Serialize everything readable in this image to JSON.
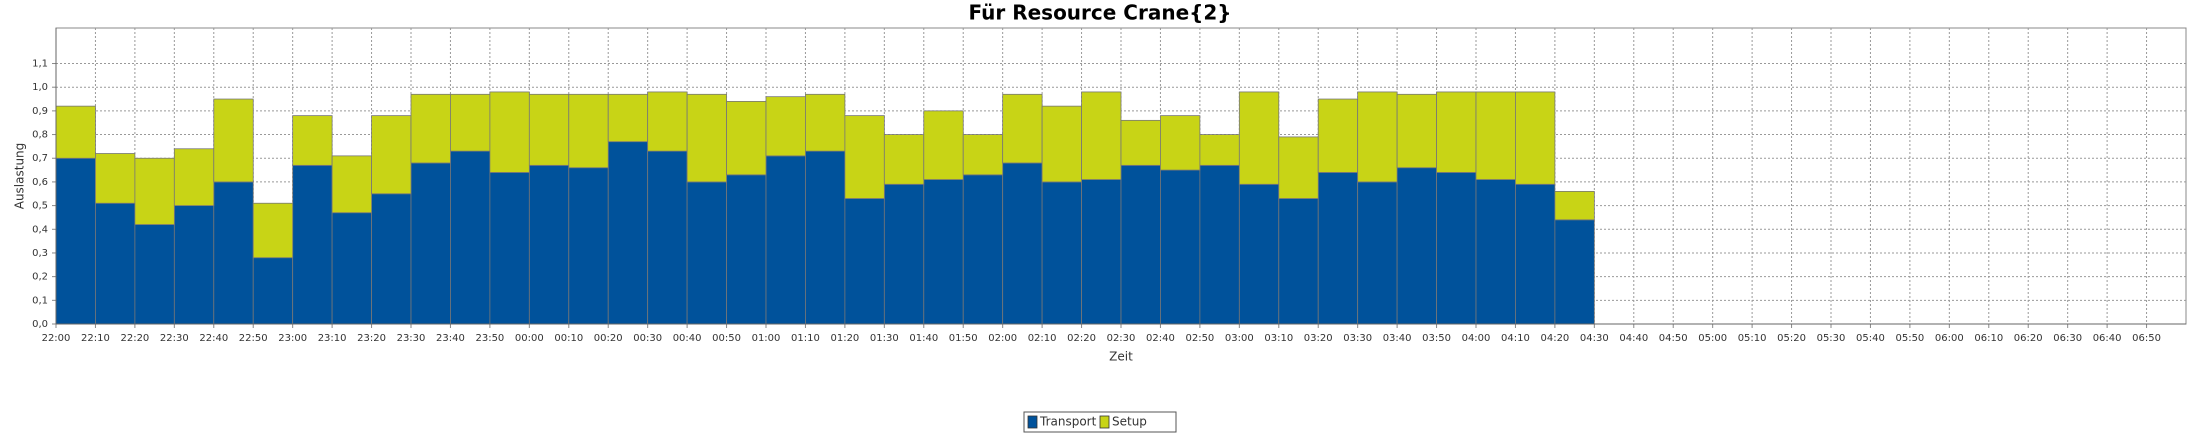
{
  "chart_data": {
    "type": "bar",
    "stacked": true,
    "title": "Für Resource Crane{2}",
    "x_label": "Zeit",
    "y_label": "Auslastung",
    "categories": [
      "22:00",
      "22:10",
      "22:20",
      "22:30",
      "22:40",
      "22:50",
      "23:00",
      "23:10",
      "23:20",
      "23:30",
      "23:40",
      "23:50",
      "00:00",
      "00:10",
      "00:20",
      "00:30",
      "00:40",
      "00:50",
      "01:00",
      "01:10",
      "01:20",
      "01:30",
      "01:40",
      "01:50",
      "02:00",
      "02:10",
      "02:20",
      "02:30",
      "02:40",
      "02:50",
      "03:00",
      "03:10",
      "03:20",
      "03:30",
      "03:40",
      "03:50",
      "04:00",
      "04:10",
      "04:20",
      "04:30",
      "04:40",
      "04:50",
      "05:00",
      "05:10",
      "05:20",
      "05:30",
      "05:40",
      "05:50",
      "06:00",
      "06:10",
      "06:20",
      "06:30",
      "06:40",
      "06:50"
    ],
    "series": [
      {
        "name": "Transport",
        "color": "#00529b",
        "values": [
          0.7,
          0.51,
          0.42,
          0.5,
          0.6,
          0.28,
          0.67,
          0.47,
          0.55,
          0.68,
          0.73,
          0.64,
          0.67,
          0.66,
          0.77,
          0.73,
          0.6,
          0.63,
          0.71,
          0.73,
          0.53,
          0.59,
          0.61,
          0.63,
          0.68,
          0.6,
          0.61,
          0.67,
          0.65,
          0.67,
          0.59,
          0.53,
          0.64,
          0.6,
          0.66,
          0.64,
          0.61,
          0.59,
          0.44,
          null,
          null,
          null,
          null,
          null,
          null,
          null,
          null,
          null,
          null,
          null,
          null,
          null,
          null,
          null
        ]
      },
      {
        "name": "Setup",
        "color": "#c8d416",
        "values": [
          0.22,
          0.21,
          0.28,
          0.24,
          0.35,
          0.23,
          0.21,
          0.24,
          0.33,
          0.29,
          0.24,
          0.34,
          0.3,
          0.31,
          0.2,
          0.25,
          0.37,
          0.31,
          0.25,
          0.24,
          0.35,
          0.21,
          0.29,
          0.17,
          0.29,
          0.32,
          0.37,
          0.19,
          0.23,
          0.13,
          0.39,
          0.26,
          0.31,
          0.38,
          0.31,
          0.34,
          0.37,
          0.39,
          0.12,
          null,
          null,
          null,
          null,
          null,
          null,
          null,
          null,
          null,
          null,
          null,
          null,
          null,
          null,
          null
        ]
      }
    ],
    "ylim": [
      0,
      1.25
    ],
    "yticks": [
      {
        "value": 0,
        "label": "0,0"
      },
      {
        "value": 0.1,
        "label": "0,1"
      },
      {
        "value": 0.2,
        "label": "0,2"
      },
      {
        "value": 0.3,
        "label": "0,3"
      },
      {
        "value": 0.4,
        "label": "0,4"
      },
      {
        "value": 0.5,
        "label": "0,5"
      },
      {
        "value": 0.6,
        "label": "0,6"
      },
      {
        "value": 0.7,
        "label": "0,7"
      },
      {
        "value": 0.8,
        "label": "0,8"
      },
      {
        "value": 0.9,
        "label": "0,9"
      },
      {
        "value": 1.0,
        "label": "1,0"
      },
      {
        "value": 1.1,
        "label": "1,1"
      }
    ],
    "grid": true,
    "legend": "bottom"
  }
}
